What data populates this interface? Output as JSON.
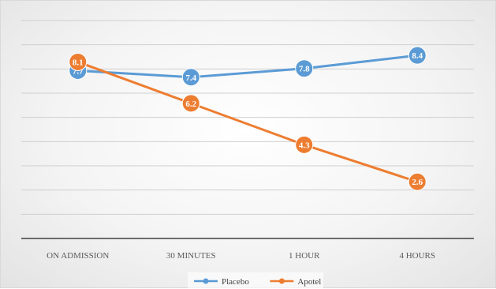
{
  "chart_data": {
    "type": "line",
    "title": "",
    "xlabel": "",
    "ylabel": "",
    "categories": [
      "ON ADMISSION",
      "30 MINUTES",
      "1 HOUR",
      "4 HOURS"
    ],
    "ylim": [
      0,
      10
    ],
    "grid": true,
    "legend_position": "bottom",
    "series": [
      {
        "name": "Placebo",
        "color": "#5b9bd5",
        "values": [
          7.7,
          7.4,
          7.8,
          8.4
        ]
      },
      {
        "name": "Apotel",
        "color": "#ed7d31",
        "values": [
          8.1,
          6.2,
          4.3,
          2.6
        ]
      }
    ]
  }
}
